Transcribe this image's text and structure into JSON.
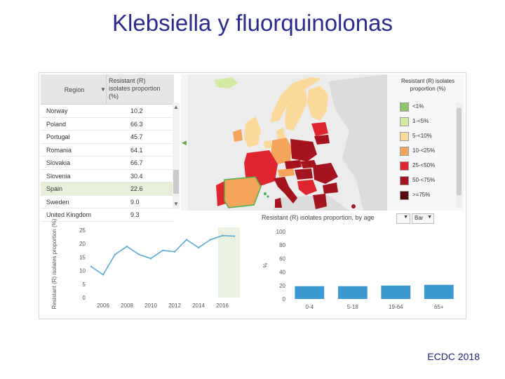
{
  "slide": {
    "title": "Klebsiella y fluorquinolonas",
    "credit": "ECDC 2018"
  },
  "table": {
    "col_region": "Region",
    "col_resistant": "Resistant (R) isolates proportion (%)",
    "rows": [
      {
        "region": "Norway",
        "value": "10.2"
      },
      {
        "region": "Poland",
        "value": "66.3"
      },
      {
        "region": "Portugal",
        "value": "45.7"
      },
      {
        "region": "Romania",
        "value": "64.1"
      },
      {
        "region": "Slovakia",
        "value": "66.7"
      },
      {
        "region": "Slovenia",
        "value": "30.4"
      },
      {
        "region": "Spain",
        "value": "22.6",
        "selected": true
      },
      {
        "region": "Sweden",
        "value": "9.0"
      },
      {
        "region": "United Kingdom",
        "value": "9.3"
      }
    ]
  },
  "legend": {
    "title": "Resistant (R) isolates proportion (%)",
    "items": [
      {
        "label": "<1%",
        "color": "#8cc56b"
      },
      {
        "label": "1-<5%",
        "color": "#d3eaa3"
      },
      {
        "label": "5-<10%",
        "color": "#fbd99b"
      },
      {
        "label": "10-<25%",
        "color": "#f4a55b"
      },
      {
        "label": "25-<50%",
        "color": "#e0252e"
      },
      {
        "label": "50-<75%",
        "color": "#a5141e"
      },
      {
        "label": ">=75%",
        "color": "#5a0a0e"
      }
    ]
  },
  "bar_panel": {
    "title": "Resistant (R) isolates proportion, by age",
    "dropdown_value": "",
    "type_value": "Bar"
  },
  "chart_data": [
    {
      "type": "line",
      "title": "",
      "xlabel": "",
      "ylabel": "Resistant (R) isolates proportion (%)",
      "x": [
        2005,
        2006,
        2007,
        2008,
        2009,
        2010,
        2011,
        2012,
        2013,
        2014,
        2015,
        2016,
        2017
      ],
      "series": [
        {
          "values": [
            11.5,
            8.5,
            16,
            19,
            16,
            14.5,
            17.5,
            17,
            21.5,
            18.5,
            21.5,
            23,
            22.8
          ]
        }
      ],
      "xticks": [
        2006,
        2008,
        2010,
        2012,
        2014,
        2016
      ],
      "yticks": [
        0,
        5,
        10,
        15,
        20,
        25
      ],
      "ylim": [
        0,
        25
      ],
      "color": "#5aaad6"
    },
    {
      "type": "bar",
      "title": "",
      "ylabel": "%",
      "categories": [
        "0-4",
        "5-18",
        "19-64",
        "65+"
      ],
      "values": [
        19,
        19,
        20,
        21
      ],
      "yticks": [
        0,
        20,
        40,
        60,
        80,
        100
      ],
      "ylim": [
        0,
        100
      ],
      "color": "#3a9ad0"
    }
  ]
}
